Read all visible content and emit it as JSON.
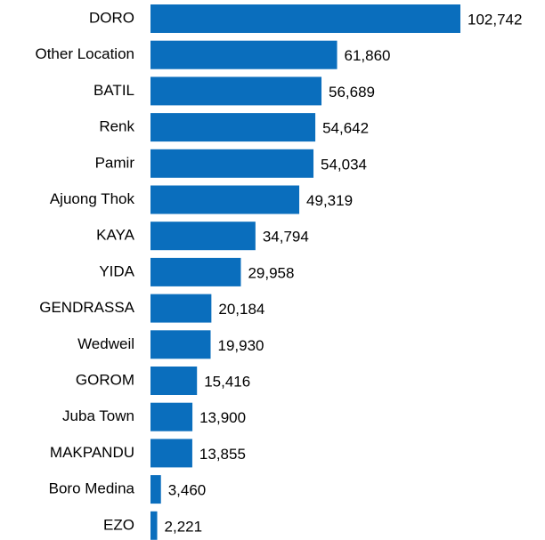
{
  "chart_data": {
    "type": "bar",
    "orientation": "horizontal",
    "color": "#0a6ebd",
    "categories": [
      "DORO",
      "Other Location",
      "BATIL",
      "Renk",
      "Pamir",
      "Ajuong Thok",
      "KAYA",
      "YIDA",
      "GENDRASSA",
      "Wedweil",
      "GOROM",
      "Juba Town",
      "MAKPANDU",
      "Boro Medina",
      "EZO"
    ],
    "values": [
      102742,
      61860,
      56689,
      54642,
      54034,
      49319,
      34794,
      29958,
      20184,
      19930,
      15416,
      13900,
      13855,
      3460,
      2221
    ],
    "value_labels": [
      "102,742",
      "61,860",
      "56,689",
      "54,642",
      "54,034",
      "49,319",
      "34,794",
      "29,958",
      "20,184",
      "19,930",
      "15,416",
      "13,900",
      "13,855",
      "3,460",
      "2,221"
    ]
  }
}
